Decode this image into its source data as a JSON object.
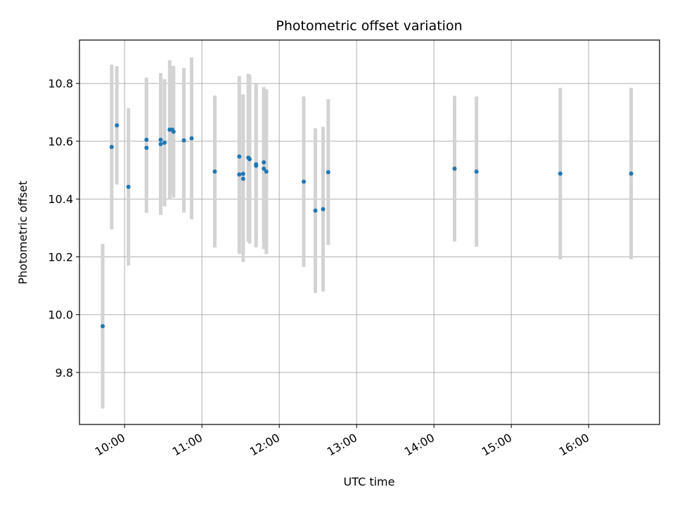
{
  "chart_data": {
    "type": "scatter",
    "title": "Photometric offset variation",
    "xlabel": "UTC time",
    "ylabel": "Photometric offset",
    "x_unit": "UTC time (HH:MM)",
    "xlim": [
      "09:25",
      "16:55"
    ],
    "ylim": [
      9.62,
      10.95
    ],
    "xticks": [
      "10:00",
      "11:00",
      "12:00",
      "13:00",
      "14:00",
      "15:00",
      "16:00"
    ],
    "yticks": [
      "9.8",
      "10.0",
      "10.2",
      "10.4",
      "10.6",
      "10.8"
    ],
    "grid": true,
    "colors": {
      "point": "#1f77b4",
      "errorbar": "#d3d3d3",
      "grid": "#b0b0b0"
    },
    "points": [
      {
        "x": "09:43",
        "y": 9.96,
        "err": 0.285
      },
      {
        "x": "09:50",
        "y": 10.58,
        "err": 0.285
      },
      {
        "x": "09:54",
        "y": 10.655,
        "err": 0.205
      },
      {
        "x": "10:03",
        "y": 10.442,
        "err": 0.272
      },
      {
        "x": "10:17",
        "y": 10.605,
        "err": 0.215
      },
      {
        "x": "10:17",
        "y": 10.577,
        "err": 0.225
      },
      {
        "x": "10:28",
        "y": 10.605,
        "err": 0.23
      },
      {
        "x": "10:28",
        "y": 10.59,
        "err": 0.245
      },
      {
        "x": "10:31",
        "y": 10.595,
        "err": 0.22
      },
      {
        "x": "10:35",
        "y": 10.64,
        "err": 0.24
      },
      {
        "x": "10:37",
        "y": 10.64,
        "err": 0.22
      },
      {
        "x": "10:38",
        "y": 10.633,
        "err": 0.228
      },
      {
        "x": "10:46",
        "y": 10.603,
        "err": 0.25
      },
      {
        "x": "10:52",
        "y": 10.61,
        "err": 0.28
      },
      {
        "x": "11:10",
        "y": 10.495,
        "err": 0.263
      },
      {
        "x": "11:29",
        "y": 10.547,
        "err": 0.278
      },
      {
        "x": "11:29",
        "y": 10.485,
        "err": 0.275
      },
      {
        "x": "11:32",
        "y": 10.487,
        "err": 0.275
      },
      {
        "x": "11:32",
        "y": 10.47,
        "err": 0.288
      },
      {
        "x": "11:36",
        "y": 10.543,
        "err": 0.29
      },
      {
        "x": "11:37",
        "y": 10.538,
        "err": 0.292
      },
      {
        "x": "11:42",
        "y": 10.515,
        "err": 0.282
      },
      {
        "x": "11:42",
        "y": 10.52,
        "err": 0.28
      },
      {
        "x": "11:48",
        "y": 10.527,
        "err": 0.26
      },
      {
        "x": "11:48",
        "y": 10.505,
        "err": 0.278
      },
      {
        "x": "11:50",
        "y": 10.495,
        "err": 0.285
      },
      {
        "x": "12:19",
        "y": 10.46,
        "err": 0.295
      },
      {
        "x": "12:28",
        "y": 10.36,
        "err": 0.285
      },
      {
        "x": "12:34",
        "y": 10.365,
        "err": 0.285
      },
      {
        "x": "12:38",
        "y": 10.493,
        "err": 0.252
      },
      {
        "x": "14:16",
        "y": 10.505,
        "err": 0.252
      },
      {
        "x": "14:33",
        "y": 10.495,
        "err": 0.26
      },
      {
        "x": "15:38",
        "y": 10.488,
        "err": 0.297
      },
      {
        "x": "16:33",
        "y": 10.488,
        "err": 0.297
      }
    ]
  }
}
